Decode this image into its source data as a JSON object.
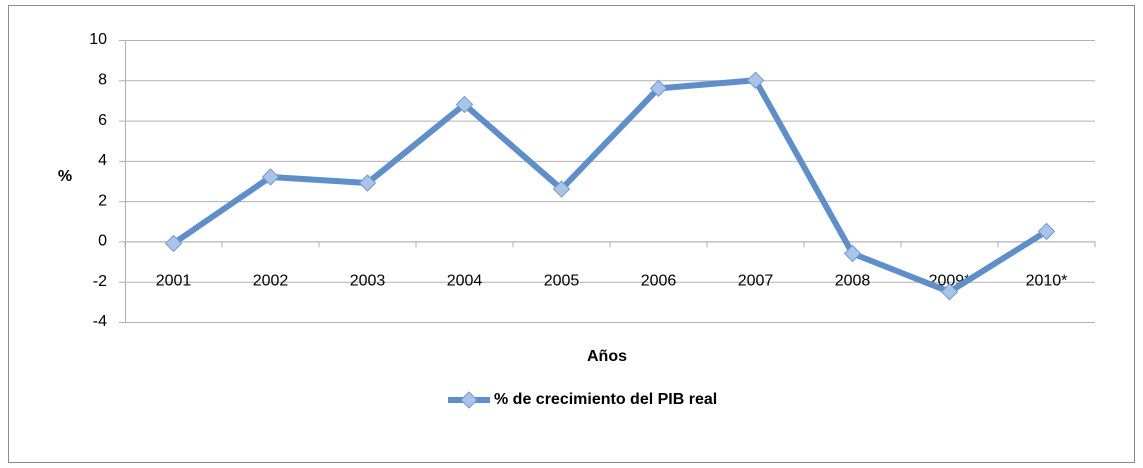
{
  "chart_data": {
    "type": "line",
    "categories": [
      "2001",
      "2002",
      "2003",
      "2004",
      "2005",
      "2006",
      "2007",
      "2008",
      "2009*",
      "2010*"
    ],
    "series": [
      {
        "name": "% de crecimiento del PIB real",
        "color": "#5f8fca",
        "values": [
          -0.1,
          3.2,
          2.9,
          6.8,
          2.6,
          7.6,
          8.0,
          -0.6,
          -2.5,
          0.5
        ]
      }
    ],
    "ylim": [
      -4,
      10
    ],
    "yticks": [
      -4,
      -2,
      0,
      2,
      4,
      6,
      8,
      10
    ],
    "ylabel": "%",
    "xlabel": "Años",
    "grid": true,
    "legend": "bottom"
  }
}
